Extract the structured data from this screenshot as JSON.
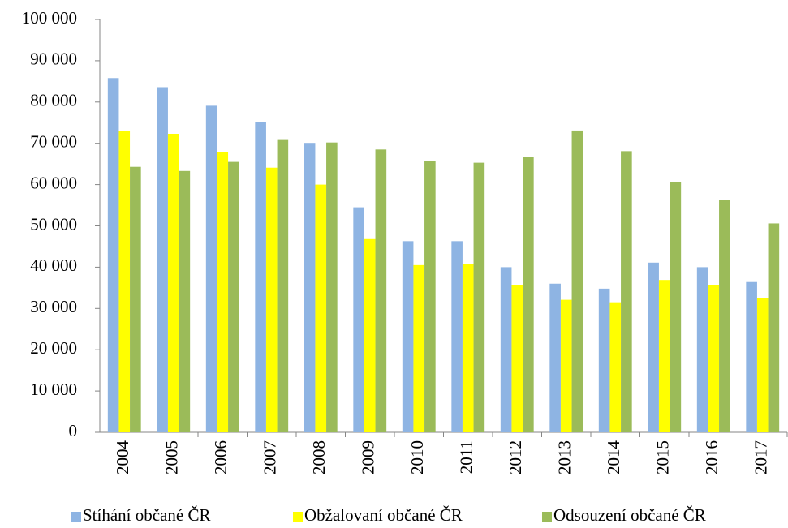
{
  "chart_data": {
    "type": "bar",
    "categories": [
      "2004",
      "2005",
      "2006",
      "2007",
      "2008",
      "2009",
      "2010",
      "2011",
      "2012",
      "2013",
      "2014",
      "2015",
      "2016",
      "2017"
    ],
    "series": [
      {
        "name": "Stíhání občané ČR",
        "color": "#8eb4e3",
        "values": [
          85800,
          83600,
          79100,
          75100,
          70100,
          54500,
          46300,
          46300,
          40000,
          36000,
          34800,
          41100,
          40000,
          36400
        ]
      },
      {
        "name": "Obžalovaní občané ČR",
        "color": "#ffff00",
        "values": [
          72900,
          72300,
          67800,
          64100,
          60000,
          46800,
          40500,
          40800,
          35700,
          32100,
          31500,
          36900,
          35700,
          32600
        ]
      },
      {
        "name": "Odsouzení občané ČR",
        "color": "#9bbb59",
        "values": [
          64300,
          63300,
          65500,
          71000,
          70200,
          68500,
          65800,
          65300,
          66600,
          73100,
          68100,
          60700,
          56300,
          50600
        ]
      }
    ],
    "ylim": [
      0,
      100000
    ],
    "yticks": [
      0,
      {
        "value": 10000,
        "label": "10 000"
      },
      {
        "value": 20000,
        "label": "20 000"
      },
      {
        "value": 30000,
        "label": "30 000"
      },
      {
        "value": 40000,
        "label": "40 000"
      },
      {
        "value": 50000,
        "label": "50 000"
      },
      {
        "value": 60000,
        "label": "60 000"
      },
      {
        "value": 70000,
        "label": "70 000"
      },
      {
        "value": 80000,
        "label": "80 000"
      },
      {
        "value": 90000,
        "label": "90 000"
      },
      {
        "value": 100000,
        "label": "100 000"
      }
    ],
    "grid": false,
    "legend": "bottom"
  }
}
